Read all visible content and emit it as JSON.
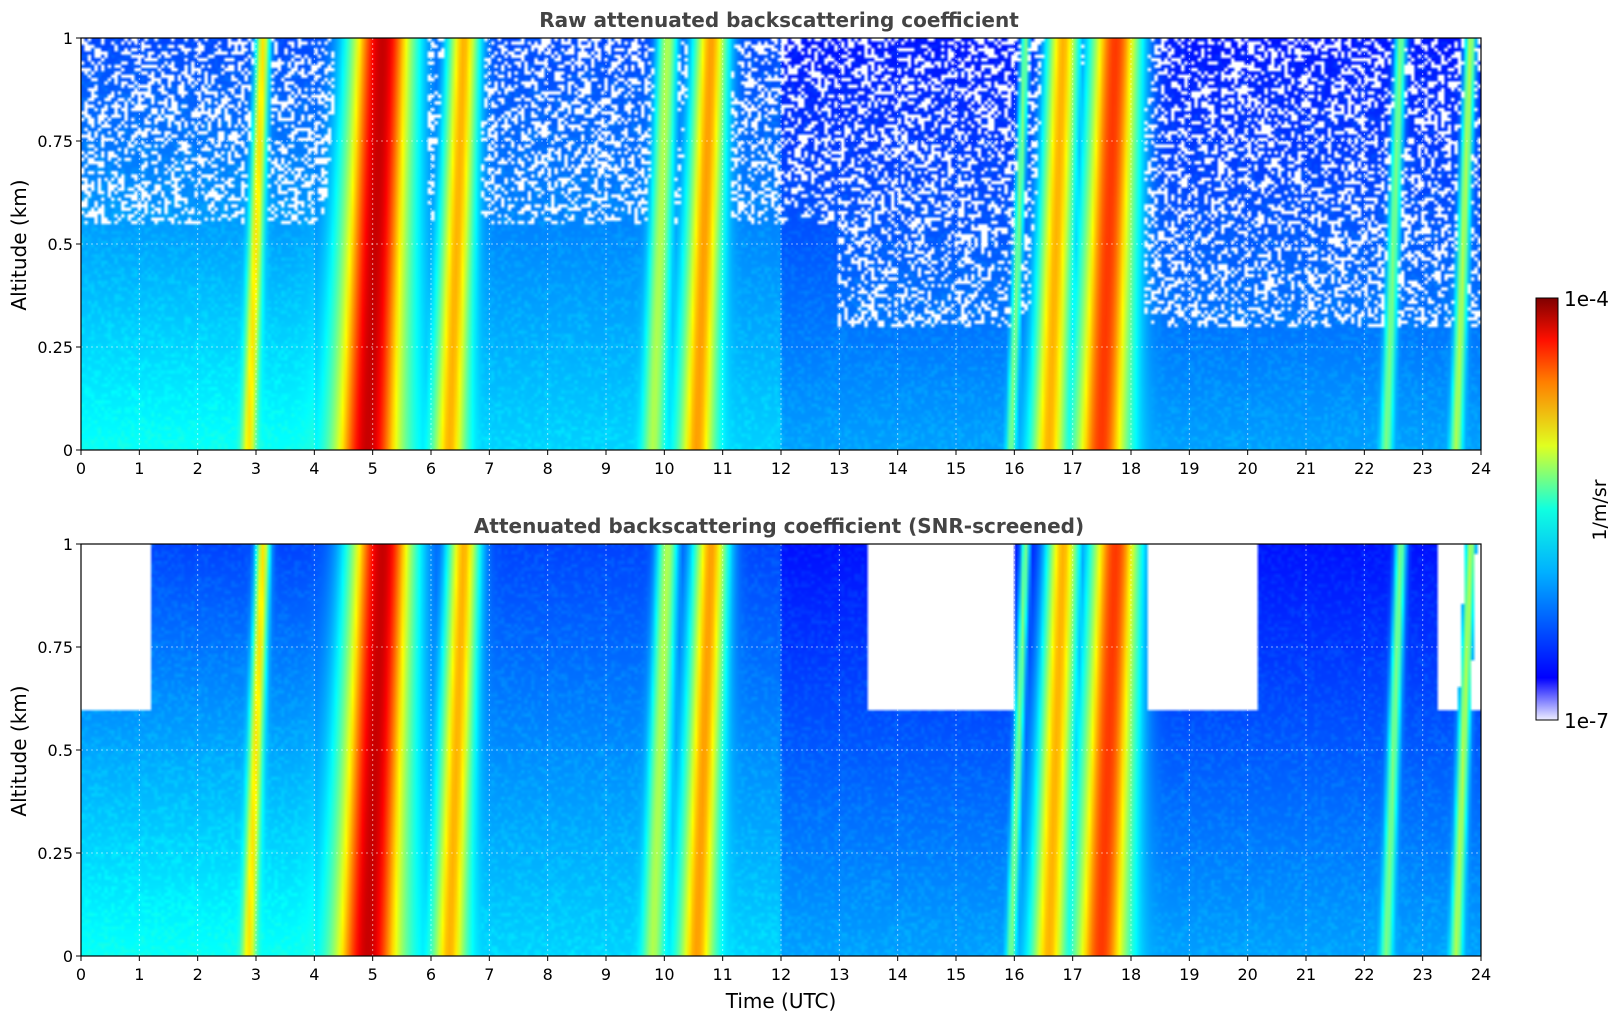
{
  "chart_data": [
    {
      "type": "heatmap",
      "title": "Raw attenuated backscattering coefficient",
      "xlabel": "",
      "ylabel": "Altitude (km)",
      "xlim": [
        0,
        24
      ],
      "ylim": [
        0,
        1
      ],
      "xticks": [
        "0",
        "1",
        "2",
        "3",
        "4",
        "5",
        "6",
        "7",
        "8",
        "9",
        "10",
        "11",
        "12",
        "13",
        "14",
        "15",
        "16",
        "17",
        "18",
        "19",
        "20",
        "21",
        "22",
        "23",
        "24"
      ],
      "yticks": [
        "0",
        "0.25",
        "0.5",
        "0.75",
        "1"
      ],
      "grid": true,
      "screened": false,
      "plumes": [
        {
          "t": 2.85,
          "width": 0.12,
          "level": 0.65
        },
        {
          "t": 4.9,
          "width": 0.55,
          "level": 0.93
        },
        {
          "t": 6.3,
          "width": 0.28,
          "level": 0.7
        },
        {
          "t": 9.8,
          "width": 0.18,
          "level": 0.55
        },
        {
          "t": 10.55,
          "width": 0.3,
          "level": 0.72
        },
        {
          "t": 15.95,
          "width": 0.08,
          "level": 0.5
        },
        {
          "t": 16.6,
          "width": 0.3,
          "level": 0.7
        },
        {
          "t": 17.5,
          "width": 0.45,
          "level": 0.82
        },
        {
          "t": 22.4,
          "width": 0.1,
          "level": 0.5
        },
        {
          "t": 23.6,
          "width": 0.1,
          "level": 0.55
        }
      ]
    },
    {
      "type": "heatmap",
      "title": "Attenuated backscattering coefficient (SNR-screened)",
      "xlabel": "Time (UTC)",
      "ylabel": "Altitude (km)",
      "xlim": [
        0,
        24
      ],
      "ylim": [
        0,
        1
      ],
      "xticks": [
        "0",
        "1",
        "2",
        "3",
        "4",
        "5",
        "6",
        "7",
        "8",
        "9",
        "10",
        "11",
        "12",
        "13",
        "14",
        "15",
        "16",
        "17",
        "18",
        "19",
        "20",
        "21",
        "22",
        "23",
        "24"
      ],
      "yticks": [
        "0",
        "0.25",
        "0.5",
        "0.75",
        "1"
      ],
      "grid": true,
      "screened": true,
      "plumes": [
        {
          "t": 2.85,
          "width": 0.12,
          "level": 0.65
        },
        {
          "t": 4.9,
          "width": 0.55,
          "level": 0.93
        },
        {
          "t": 6.3,
          "width": 0.28,
          "level": 0.7
        },
        {
          "t": 9.8,
          "width": 0.18,
          "level": 0.55
        },
        {
          "t": 10.55,
          "width": 0.3,
          "level": 0.72
        },
        {
          "t": 15.95,
          "width": 0.08,
          "level": 0.5
        },
        {
          "t": 16.6,
          "width": 0.3,
          "level": 0.7
        },
        {
          "t": 17.5,
          "width": 0.45,
          "level": 0.82
        },
        {
          "t": 22.4,
          "width": 0.1,
          "level": 0.5
        },
        {
          "t": 23.6,
          "width": 0.1,
          "level": 0.55
        }
      ]
    }
  ],
  "colorbar": {
    "label": "1/m/sr",
    "max_label": "1e-4",
    "min_label": "1e-7",
    "colormap": "jet",
    "scale": "log"
  }
}
